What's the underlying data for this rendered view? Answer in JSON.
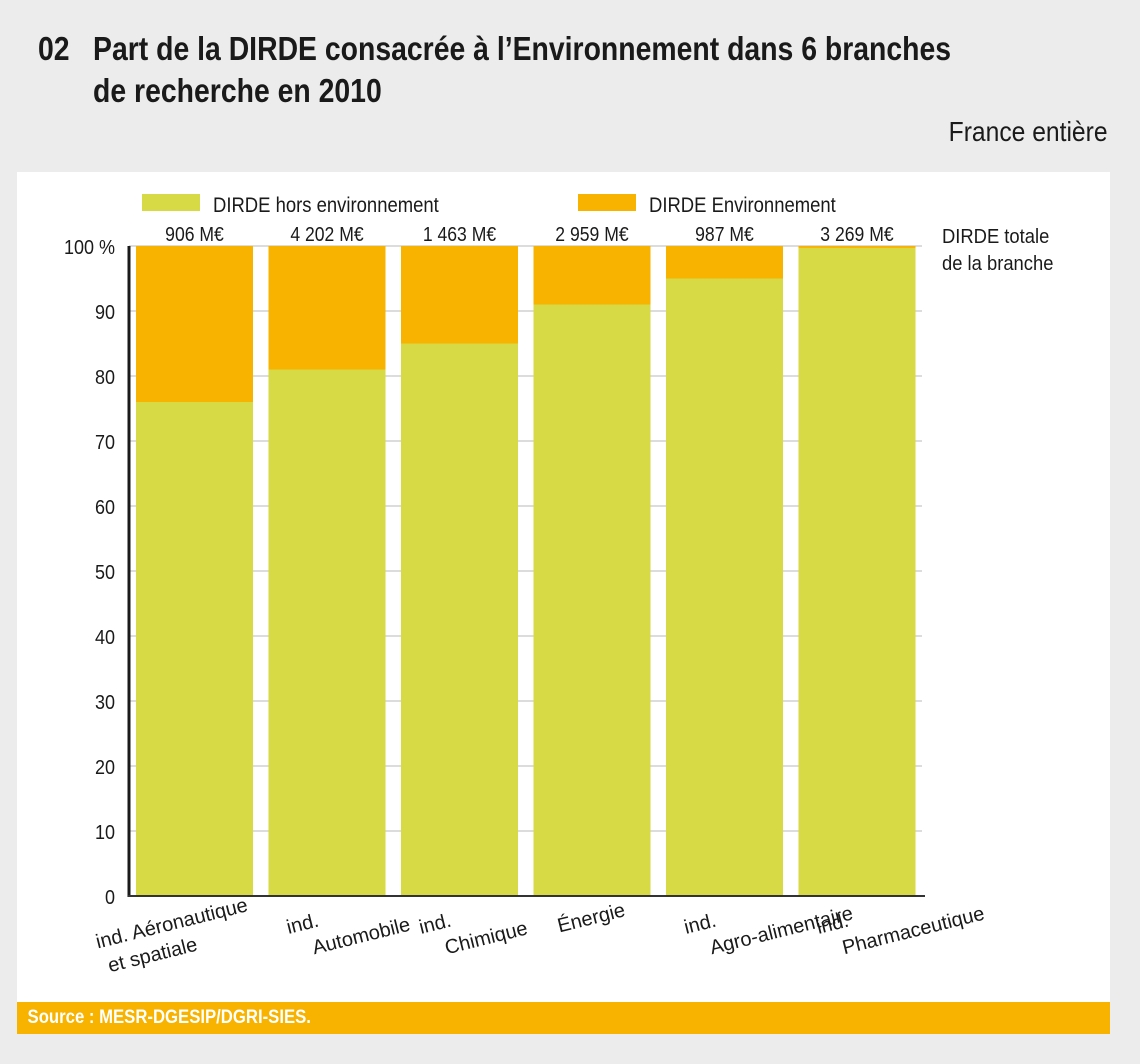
{
  "title": {
    "number": "02",
    "line1": "Part de la DIRDE consacrée à l’Environnement dans 6 branches",
    "line2": "de recherche en 2010"
  },
  "scope": "France entière",
  "source": "Source : MESR-DGESIP/DGRI-SIES.",
  "colors": {
    "hors_env": "#d7da45",
    "env": "#f8b200",
    "background": "#ececec",
    "panel": "#ffffff"
  },
  "chart_data": {
    "type": "bar",
    "stacked": true,
    "title": "Part de la DIRDE consacrée à l’Environnement dans 6 branches de recherche en 2010",
    "xlabel": "",
    "ylabel": "",
    "ylim": [
      0,
      100
    ],
    "yticks": [
      0,
      10,
      20,
      30,
      40,
      50,
      60,
      70,
      80,
      90,
      100
    ],
    "ytick_labels": [
      "0",
      "10",
      "20",
      "30",
      "40",
      "50",
      "60",
      "70",
      "80",
      "90",
      "100 %"
    ],
    "grid": true,
    "legend_position": "top",
    "categories": [
      [
        "ind. Aéronautique",
        "et spatiale"
      ],
      [
        "ind.",
        "Automobile"
      ],
      [
        "ind.",
        "Chimique"
      ],
      [
        "Énergie"
      ],
      [
        "ind.",
        "Agro-alimentaire"
      ],
      [
        "ind.",
        "Pharmaceutique"
      ]
    ],
    "series": [
      {
        "name": "DIRDE hors environnement",
        "color": "#d7da45",
        "values": [
          76,
          81,
          85,
          91,
          95,
          99.7
        ]
      },
      {
        "name": "DIRDE Environnement",
        "color": "#f8b200",
        "values": [
          24,
          19,
          15,
          9,
          5,
          0.3
        ]
      }
    ],
    "bar_top_labels": [
      "906 M€",
      "4 202 M€",
      "1 463 M€",
      "2 959 M€",
      "987 M€",
      "3 269 M€"
    ],
    "bar_top_labels_caption": [
      "DIRDE totale",
      "de la branche"
    ]
  }
}
